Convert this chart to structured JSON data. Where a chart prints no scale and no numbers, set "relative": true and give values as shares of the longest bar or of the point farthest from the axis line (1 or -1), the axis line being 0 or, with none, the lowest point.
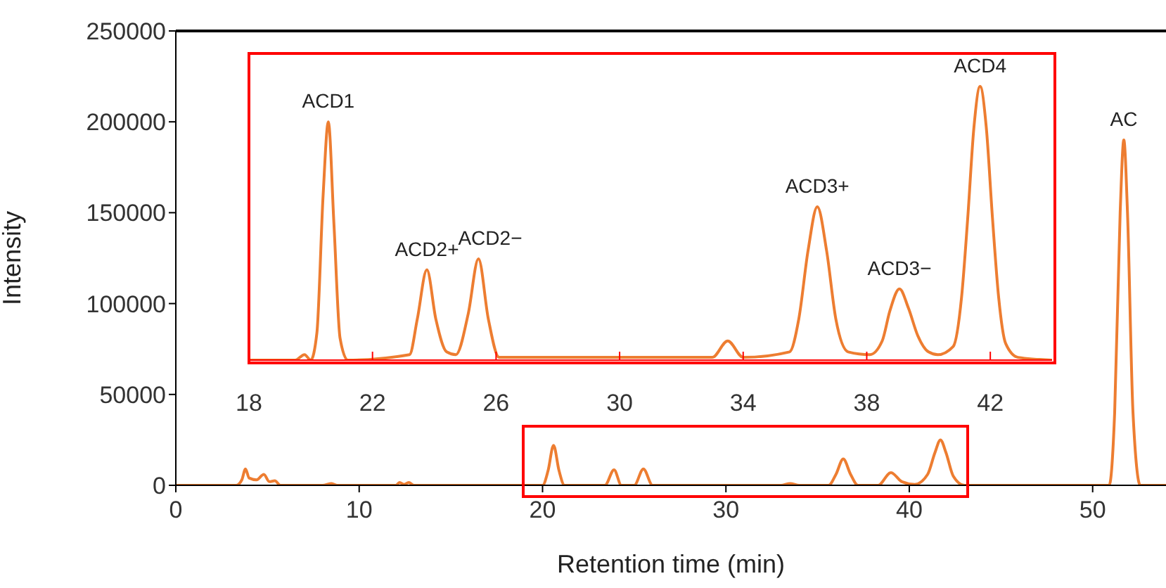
{
  "chart_data": [
    {
      "type": "line",
      "xlabel": "Retention time (min)",
      "ylabel": "Intensity",
      "xlim": [
        0,
        54
      ],
      "xticks": [
        0,
        10,
        20,
        30,
        40,
        50
      ],
      "ylim": [
        0,
        250000
      ],
      "yticks": [
        0,
        50000,
        100000,
        150000,
        200000,
        250000
      ],
      "series": [
        {
          "color": "#ed7d31",
          "x": [
            0,
            3.3,
            3.6,
            3.8,
            4.0,
            4.4,
            4.8,
            5.1,
            5.4,
            5.7,
            8.0,
            8.5,
            8.8,
            12.0,
            12.2,
            12.45,
            12.7,
            13.0,
            20.0,
            20.3,
            20.6,
            20.9,
            21.2,
            23.4,
            23.9,
            24.3,
            25.0,
            25.5,
            26.0,
            33.0,
            33.5,
            34.0,
            35.6,
            36.0,
            36.4,
            36.8,
            37.2,
            38.3,
            39.0,
            39.6,
            40.3,
            41.0,
            41.4,
            41.7,
            42.0,
            42.4,
            43.0,
            50.9,
            51.2,
            51.5,
            51.7,
            51.9,
            52.2,
            52.6,
            54
          ],
          "values": [
            0,
            0,
            3000,
            9000,
            4000,
            3000,
            6000,
            2000,
            2500,
            0,
            0,
            1000,
            0,
            0,
            1500,
            500,
            1500,
            0,
            0,
            8000,
            22000,
            8000,
            0,
            0,
            8500,
            0,
            0,
            9000,
            0,
            0,
            1000,
            0,
            0,
            6000,
            14500,
            6000,
            0,
            0,
            7000,
            2000,
            500,
            6000,
            18000,
            25000,
            18000,
            5000,
            0,
            0,
            40000,
            150000,
            190000,
            150000,
            40000,
            0,
            0
          ]
        }
      ],
      "annotations": [
        {
          "text": "AC",
          "x": 51.7,
          "y": 190000
        }
      ]
    },
    {
      "type": "line",
      "relative": true,
      "tick_labels": "x",
      "xlim": [
        18,
        44
      ],
      "xticks": [
        18,
        22,
        26,
        30,
        34,
        38,
        42
      ],
      "series": [
        {
          "color": "#ed7d31",
          "x": [
            18,
            19.5,
            19.8,
            20.0,
            20.2,
            20.4,
            20.57,
            20.75,
            20.95,
            21.2,
            23.2,
            23.45,
            23.76,
            24.05,
            24.4,
            24.7,
            25.1,
            25.43,
            25.75,
            26.1,
            33.0,
            33.5,
            34.0,
            35.5,
            35.8,
            36.1,
            36.4,
            36.7,
            37.0,
            37.4,
            38.1,
            38.5,
            38.75,
            39.06,
            39.35,
            39.65,
            40.0,
            40.3,
            40.8,
            41.07,
            41.27,
            41.47,
            41.67,
            41.87,
            42.07,
            42.27,
            42.5,
            42.9,
            44
          ],
          "values": [
            0,
            0,
            0.02,
            0,
            0.1,
            0.6,
            0.87,
            0.5,
            0.08,
            0,
            0.02,
            0.15,
            0.33,
            0.15,
            0.03,
            0.02,
            0.17,
            0.37,
            0.15,
            0.01,
            0.01,
            0.07,
            0.01,
            0.03,
            0.15,
            0.4,
            0.56,
            0.4,
            0.15,
            0.03,
            0.02,
            0.07,
            0.18,
            0.26,
            0.19,
            0.09,
            0.03,
            0.02,
            0.05,
            0.23,
            0.52,
            0.85,
            1,
            0.85,
            0.52,
            0.23,
            0.06,
            0.01,
            0
          ]
        }
      ],
      "annotations": [
        {
          "text": "ACD1",
          "x": 20.57,
          "y": 0.87
        },
        {
          "text": "ACD2+",
          "x": 23.76,
          "y": 0.33
        },
        {
          "text": "ACD2−",
          "x": 25.43,
          "y": 0.37
        },
        {
          "text": "ACD3+",
          "x": 36.4,
          "y": 0.56
        },
        {
          "text": "ACD3−",
          "x": 39.06,
          "y": 0.26
        },
        {
          "text": "ACD4",
          "x": 41.67,
          "y": 1
        }
      ]
    }
  ]
}
